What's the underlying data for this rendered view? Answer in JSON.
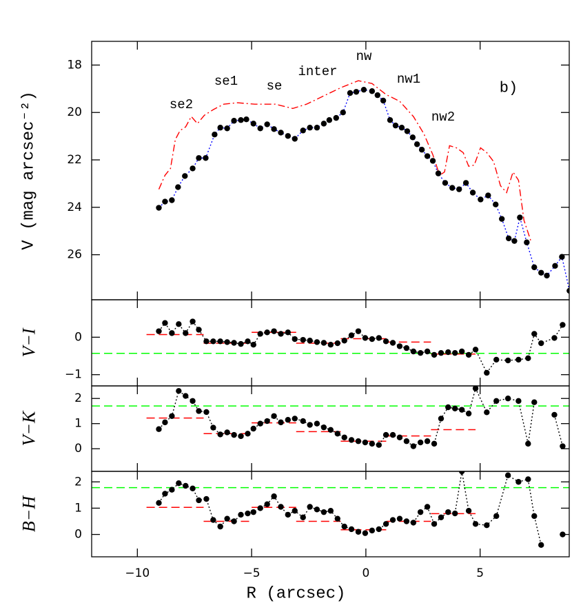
{
  "chart_data": [
    {
      "type": "scatter",
      "ylabel": "V (mag arcsec⁻²)",
      "xlim": [
        -12,
        8.9
      ],
      "ylim": [
        27.9,
        17
      ],
      "xticks": [
        -10,
        -5,
        0,
        5
      ],
      "yticks": [
        18,
        20,
        22,
        24,
        26
      ],
      "annotations": [
        "se2",
        "se1",
        "se",
        "inter",
        "nw",
        "nw1",
        "nw2",
        "b)"
      ],
      "series": [
        {
          "color": "#ff0000",
          "style": "dashdot",
          "x": [
            -9.06,
            -8.79,
            -8.55,
            -8.34,
            -8.13,
            -7.89,
            -7.64,
            -7.37,
            -7.07,
            -6.68,
            -6.22,
            -5.62,
            -4.86,
            -3.96,
            -3.2,
            -2.6,
            -1.84,
            -1.09,
            -0.33,
            0.27,
            0.88,
            1.48,
            2.08,
            2.54,
            2.93,
            3.23,
            3.44,
            3.66,
            3.96,
            4.26,
            4.5,
            4.74,
            5.02,
            5.29,
            5.59,
            5.89,
            6.16,
            6.44,
            6.68,
            6.92,
            7.22
          ],
          "values": [
            23.24,
            22.65,
            22.36,
            21.14,
            20.76,
            20.61,
            20.17,
            20.47,
            20.12,
            19.88,
            19.65,
            19.59,
            19.65,
            19.65,
            19.83,
            19.65,
            19.3,
            18.95,
            18.66,
            18.78,
            19.24,
            19.53,
            20.17,
            20.9,
            21.78,
            22.65,
            22.51,
            21.4,
            21.49,
            21.69,
            22.27,
            22.22,
            21.49,
            21.69,
            22.07,
            23.09,
            23.38,
            22.51,
            22.86,
            24.55,
            25.42
          ]
        },
        {
          "color": "#000000",
          "style": "dots",
          "line_color": "#0000ff",
          "line_style": "dotted",
          "x": [
            -9.06,
            -8.79,
            -8.49,
            -8.22,
            -7.92,
            -7.58,
            -7.31,
            -7.01,
            -6.62,
            -6.37,
            -6.07,
            -5.77,
            -5.47,
            -5.23,
            -4.92,
            -4.62,
            -4.32,
            -4.02,
            -3.72,
            -3.41,
            -3.11,
            -2.75,
            -2.45,
            -2.14,
            -1.84,
            -1.6,
            -1.3,
            -1.0,
            -0.69,
            -0.42,
            -0.09,
            0.27,
            0.51,
            0.76,
            1.06,
            1.3,
            1.57,
            1.81,
            2.05,
            2.24,
            2.45,
            2.69,
            2.93,
            3.17,
            3.47,
            3.78,
            4.08,
            4.38,
            4.68,
            5.02,
            5.35,
            5.68,
            5.95,
            6.25,
            6.5,
            6.74,
            7.04,
            7.37,
            7.67,
            7.92,
            8.28,
            8.58,
            8.91
          ],
          "values": [
            24.02,
            23.76,
            23.7,
            23.15,
            22.68,
            22.36,
            21.92,
            21.92,
            20.93,
            20.64,
            20.67,
            20.35,
            20.32,
            20.29,
            20.47,
            20.67,
            20.5,
            20.7,
            20.85,
            20.99,
            21.11,
            20.76,
            20.64,
            20.64,
            20.47,
            20.32,
            20.23,
            20.0,
            19.18,
            19.13,
            19.04,
            19.1,
            19.27,
            19.5,
            20.32,
            20.55,
            20.64,
            20.79,
            21.05,
            21.34,
            21.57,
            21.84,
            22.04,
            22.57,
            22.97,
            23.18,
            23.24,
            22.97,
            23.38,
            23.67,
            23.5,
            23.88,
            24.49,
            25.31,
            25.42,
            24.43,
            25.48,
            26.53,
            26.76,
            26.88,
            26.47,
            26.09,
            27.52
          ]
        }
      ]
    },
    {
      "type": "scatter",
      "ylabel": "V−I",
      "xlim": [
        -12,
        8.9
      ],
      "ylim": [
        -1.3,
        1
      ],
      "xticks": [
        -10,
        -5,
        0,
        5
      ],
      "yticks": [
        {
          "value": -1,
          "label": "−1"
        },
        0
      ],
      "reference": {
        "value": -0.43,
        "color": "#00ff00"
      },
      "steps": {
        "color": "#ff0000",
        "edges": [
          -9.6,
          -7.1,
          -5.0,
          -3.05,
          -1.1,
          0.9,
          2.85,
          4.8
        ],
        "values": [
          0.07,
          -0.16,
          0.13,
          -0.16,
          -0.04,
          -0.13,
          -0.45
        ]
      },
      "series": [
        {
          "color": "#000000",
          "style": "dots",
          "line_color": "#000000",
          "line_style": "dotted",
          "x": [
            -9.06,
            -8.79,
            -8.49,
            -8.19,
            -7.89,
            -7.58,
            -7.31,
            -6.98,
            -6.68,
            -6.37,
            -6.07,
            -5.77,
            -5.47,
            -5.17,
            -4.92,
            -4.62,
            -4.32,
            -4.02,
            -3.72,
            -3.41,
            -3.11,
            -2.75,
            -2.45,
            -2.14,
            -1.84,
            -1.54,
            -1.24,
            -0.94,
            -0.63,
            -0.33,
            -0.03,
            0.27,
            0.57,
            0.88,
            1.18,
            1.48,
            1.78,
            2.08,
            2.39,
            2.69,
            2.99,
            3.29,
            3.6,
            3.9,
            4.2,
            4.5,
            4.8,
            5.29,
            5.71,
            6.22,
            6.68,
            7.1,
            7.37,
            7.67,
            8.25,
            8.61
          ],
          "values": [
            0.16,
            0.38,
            0.11,
            0.35,
            0.11,
            0.42,
            0.2,
            -0.11,
            -0.11,
            -0.11,
            -0.13,
            -0.15,
            -0.18,
            -0.11,
            -0.2,
            0.09,
            0.13,
            0.16,
            0.09,
            0.13,
            -0.05,
            -0.07,
            -0.09,
            -0.13,
            -0.15,
            -0.2,
            -0.16,
            -0.09,
            0.05,
            0.16,
            -0.02,
            -0.05,
            -0.02,
            -0.11,
            -0.15,
            -0.24,
            -0.29,
            -0.38,
            -0.42,
            -0.38,
            -0.47,
            -0.42,
            -0.4,
            -0.42,
            -0.38,
            -0.47,
            -0.33,
            -0.95,
            -0.6,
            -0.62,
            -0.6,
            -0.56,
            0.09,
            -0.16,
            -0.02,
            0.33
          ]
        }
      ]
    },
    {
      "type": "scatter",
      "ylabel": "V−K",
      "xlim": [
        -12,
        8.9
      ],
      "ylim": [
        -0.9,
        2.5
      ],
      "xticks": [
        -10,
        -5,
        0,
        5
      ],
      "yticks": [
        0,
        1,
        2
      ],
      "reference": {
        "value": 1.7,
        "color": "#00ff00"
      },
      "steps": {
        "color": "#ff0000",
        "edges": [
          -9.6,
          -7.1,
          -5.0,
          -3.05,
          -1.1,
          0.9,
          2.85,
          4.8
        ],
        "values": [
          1.22,
          0.6,
          1.03,
          0.68,
          0.3,
          0.51,
          0.76
        ]
      },
      "series": [
        {
          "color": "#000000",
          "style": "dots",
          "line_color": "#000000",
          "line_style": "dotted",
          "x": [
            -9.06,
            -8.79,
            -8.49,
            -8.19,
            -7.89,
            -7.58,
            -7.31,
            -6.98,
            -6.68,
            -6.37,
            -6.07,
            -5.77,
            -5.47,
            -5.17,
            -4.92,
            -4.62,
            -4.32,
            -4.02,
            -3.72,
            -3.41,
            -3.11,
            -2.75,
            -2.45,
            -2.14,
            -1.84,
            -1.54,
            -1.24,
            -0.94,
            -0.63,
            -0.33,
            -0.03,
            0.27,
            0.57,
            0.88,
            1.18,
            1.48,
            1.78,
            2.08,
            2.39,
            2.69,
            2.99,
            3.29,
            3.6,
            3.9,
            4.2,
            4.5,
            4.8,
            5.29,
            5.71,
            6.22,
            6.68,
            7.1,
            7.37,
            7.67,
            8.25,
            8.61
          ],
          "values": [
            0.78,
            1.05,
            1.3,
            2.3,
            2.1,
            1.9,
            1.5,
            1.46,
            0.84,
            0.57,
            0.65,
            0.55,
            0.5,
            0.6,
            0.8,
            1.0,
            1.1,
            1.3,
            1.05,
            1.15,
            1.2,
            1.1,
            0.95,
            1.0,
            0.85,
            0.75,
            0.6,
            0.45,
            0.35,
            0.3,
            0.25,
            0.2,
            0.15,
            0.55,
            0.55,
            0.45,
            0.3,
            0.1,
            0.25,
            0.3,
            0.2,
            1.2,
            1.65,
            1.6,
            1.55,
            1.4,
            2.4,
            1.45,
            1.9,
            2.0,
            1.9,
            0.2,
            1.85,
            null,
            1.35,
            0.1
          ]
        }
      ]
    },
    {
      "type": "scatter",
      "ylabel": "B−H",
      "xlabel": "R (arcsec)",
      "xlim": [
        -12,
        8.9
      ],
      "ylim": [
        -0.85,
        2.4
      ],
      "xticks": [
        {
          "value": -10,
          "label": "−10"
        },
        {
          "value": -5,
          "label": "−5"
        },
        0,
        5
      ],
      "yticks": [
        0,
        1,
        2
      ],
      "reference": {
        "value": 1.78,
        "color": "#00ff00"
      },
      "steps": {
        "color": "#ff0000",
        "edges": [
          -9.6,
          -7.1,
          -5.0,
          -3.05,
          -1.1,
          0.9,
          2.85,
          4.8
        ],
        "values": [
          1.03,
          0.5,
          1.03,
          0.5,
          0.18,
          0.5,
          0.79
        ]
      },
      "series": [
        {
          "color": "#000000",
          "style": "dots",
          "line_color": "#000000",
          "line_style": "dotted",
          "x": [
            -9.06,
            -8.79,
            -8.49,
            -8.19,
            -7.89,
            -7.58,
            -7.31,
            -6.98,
            -6.68,
            -6.37,
            -6.07,
            -5.77,
            -5.47,
            -5.17,
            -4.92,
            -4.62,
            -4.32,
            -4.02,
            -3.72,
            -3.41,
            -3.11,
            -2.75,
            -2.45,
            -2.14,
            -1.84,
            -1.54,
            -1.24,
            -0.94,
            -0.63,
            -0.33,
            -0.03,
            0.27,
            0.57,
            0.88,
            1.18,
            1.48,
            1.78,
            2.08,
            2.39,
            2.69,
            2.99,
            3.29,
            3.6,
            3.9,
            4.2,
            4.5,
            4.8,
            5.29,
            5.71,
            6.22,
            6.68,
            7.1,
            7.37,
            7.67,
            8.25,
            8.61
          ],
          "values": [
            1.2,
            1.55,
            1.7,
            1.95,
            1.85,
            1.75,
            1.3,
            1.35,
            0.55,
            0.3,
            0.6,
            0.5,
            0.75,
            0.8,
            0.85,
            1.0,
            1.15,
            1.45,
            1.05,
            0.75,
            0.9,
            0.65,
            1.05,
            0.95,
            0.85,
            0.9,
            0.6,
            0.3,
            0.2,
            0.1,
            0.05,
            0.15,
            0.2,
            0.4,
            0.55,
            0.6,
            0.5,
            0.45,
            0.85,
            1.05,
            0.4,
            0.65,
            0.85,
            0.8,
            2.4,
            0.9,
            0.4,
            0.35,
            0.7,
            2.25,
            2.0,
            2.1,
            0.7,
            -0.4,
            null,
            0.0
          ]
        }
      ]
    }
  ]
}
